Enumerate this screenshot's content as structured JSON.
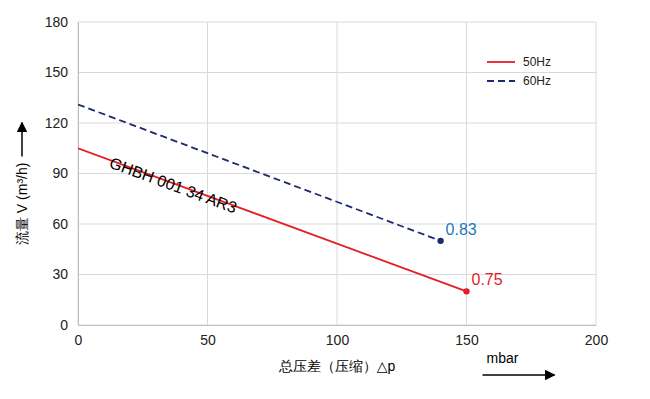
{
  "chart_data": {
    "type": "line",
    "x_label": "总压差（压缩）△p",
    "x_unit_label": "mbar",
    "y_label": "流量 V (m³/h)",
    "xlim": [
      0,
      200
    ],
    "xticks": [
      0,
      50,
      100,
      150,
      200
    ],
    "ylim": [
      0,
      180
    ],
    "yticks": [
      0,
      30,
      60,
      90,
      120,
      150,
      180
    ],
    "grid": true,
    "legend": "top-right",
    "series": [
      {
        "name": "50Hz",
        "color": "#e31e24",
        "line_style": "solid",
        "x": [
          0,
          150
        ],
        "values": [
          105,
          20
        ]
      },
      {
        "name": "60Hz",
        "color": "#1f2a6e",
        "line_style": "dashed",
        "x": [
          0,
          140
        ],
        "values": [
          131,
          50
        ]
      }
    ],
    "annotations": [
      {
        "text": "GHBH 001 34 AR3",
        "x": 36,
        "y": 80,
        "color": "#000000"
      },
      {
        "text": "0.75",
        "x": 150,
        "y": 20,
        "color": "#e31e24"
      },
      {
        "text": "0.83",
        "x": 140,
        "y": 50,
        "color": "#1a7abf"
      }
    ]
  }
}
